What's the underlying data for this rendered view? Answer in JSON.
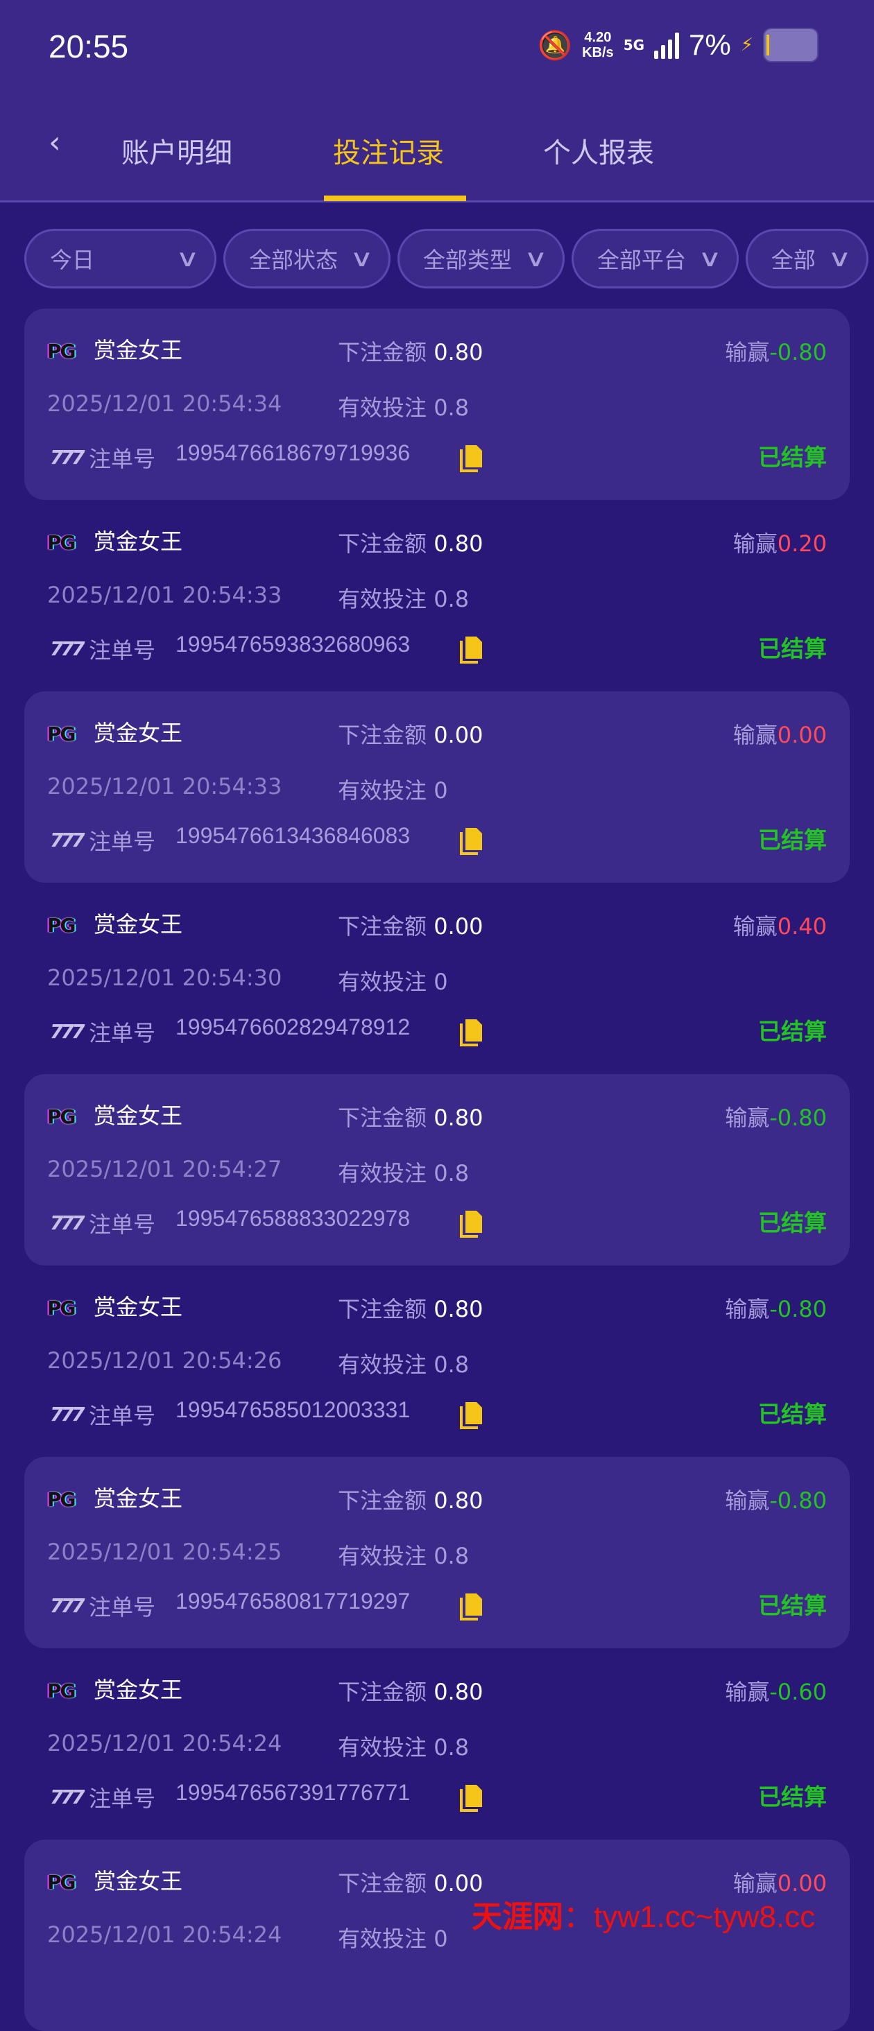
{
  "status_bar": {
    "time": "20:55",
    "speed": "4.20",
    "speed_unit": "KB/s",
    "network": "5G",
    "battery": "7%",
    "icons": [
      "bell-muted-icon",
      "signal-icon",
      "charging-icon",
      "battery-icon"
    ]
  },
  "tabs": [
    {
      "label": "账户明细"
    },
    {
      "label": "投注记录",
      "active": true
    },
    {
      "label": "个人报表"
    }
  ],
  "filters": [
    "今日",
    "全部状态",
    "全部类型",
    "全部平台",
    "全部"
  ],
  "labels": {
    "bet": "下注金额",
    "winloss": "输赢",
    "valid": "有效投注",
    "order": "注单号"
  },
  "colors": {
    "accent": "#f5c518",
    "win": "#ff4a5a",
    "loss": "#22c322",
    "settled": "#22c322",
    "bg": "#2a1878"
  },
  "records": [
    {
      "platform": "PG",
      "game": "赏金女王",
      "bet": "0.80",
      "winloss": "-0.80",
      "date": "2025/12/01 20:54:34",
      "valid": "0.8",
      "order": "1995476618679719936",
      "status": "已结算"
    },
    {
      "platform": "PG",
      "game": "赏金女王",
      "bet": "0.80",
      "winloss": "0.20",
      "date": "2025/12/01 20:54:33",
      "valid": "0.8",
      "order": "1995476593832680963",
      "status": "已结算"
    },
    {
      "platform": "PG",
      "game": "赏金女王",
      "bet": "0.00",
      "winloss": "0.00",
      "date": "2025/12/01 20:54:33",
      "valid": "0",
      "order": "1995476613436846083",
      "status": "已结算"
    },
    {
      "platform": "PG",
      "game": "赏金女王",
      "bet": "0.00",
      "winloss": "0.40",
      "date": "2025/12/01 20:54:30",
      "valid": "0",
      "order": "1995476602829478912",
      "status": "已结算"
    },
    {
      "platform": "PG",
      "game": "赏金女王",
      "bet": "0.80",
      "winloss": "-0.80",
      "date": "2025/12/01 20:54:27",
      "valid": "0.8",
      "order": "1995476588833022978",
      "status": "已结算"
    },
    {
      "platform": "PG",
      "game": "赏金女王",
      "bet": "0.80",
      "winloss": "-0.80",
      "date": "2025/12/01 20:54:26",
      "valid": "0.8",
      "order": "1995476585012003331",
      "status": "已结算"
    },
    {
      "platform": "PG",
      "game": "赏金女王",
      "bet": "0.80",
      "winloss": "-0.80",
      "date": "2025/12/01 20:54:25",
      "valid": "0.8",
      "order": "1995476580817719297",
      "status": "已结算"
    },
    {
      "platform": "PG",
      "game": "赏金女王",
      "bet": "0.80",
      "winloss": "-0.60",
      "date": "2025/12/01 20:54:24",
      "valid": "0.8",
      "order": "1995476567391776771",
      "status": "已结算"
    },
    {
      "platform": "PG",
      "game": "赏金女王",
      "bet": "0.00",
      "winloss": "0.00",
      "date": "2025/12/01 20:54:24",
      "valid": "0",
      "order": "",
      "status": ""
    }
  ],
  "watermark": {
    "site": "天涯网",
    "sep": "：",
    "text": "tyw1.cc~tyw8.cc"
  }
}
